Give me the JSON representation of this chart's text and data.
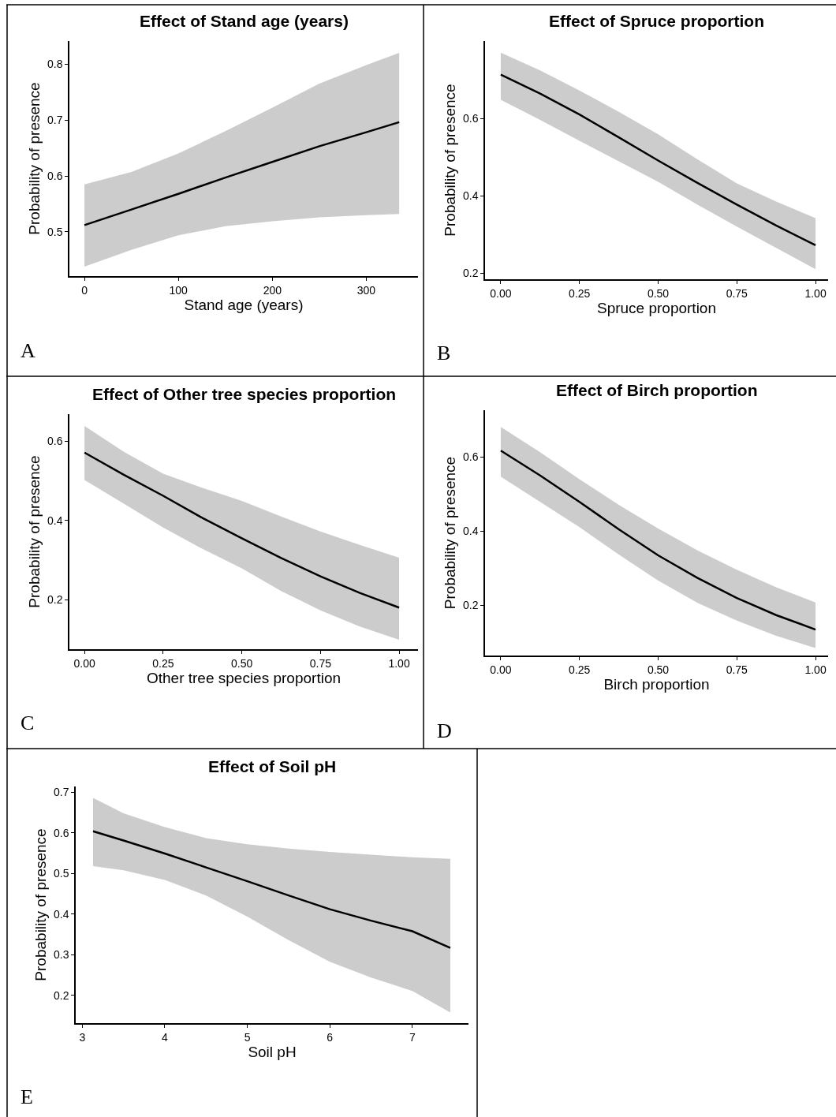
{
  "chart_data": [
    {
      "type": "line",
      "title": "Effect of Stand age (years)",
      "xlabel": "Stand age (years)",
      "ylabel": "Probability of presence",
      "annotations": [
        "A"
      ],
      "x": [
        0,
        50,
        100,
        150,
        200,
        250,
        300,
        335
      ],
      "series": [
        {
          "color": "#000000",
          "values": [
            0.512,
            0.54,
            0.568,
            0.597,
            0.625,
            0.653,
            0.678,
            0.696
          ],
          "lower": [
            0.438,
            0.468,
            0.494,
            0.51,
            0.519,
            0.526,
            0.53,
            0.532
          ],
          "upper": [
            0.585,
            0.607,
            0.64,
            0.68,
            0.722,
            0.765,
            0.798,
            0.82
          ]
        }
      ],
      "xlim": [
        -16,
        355
      ],
      "ylim": [
        0.421,
        0.841
      ],
      "xticks": [
        0,
        100,
        200,
        300
      ],
      "yticks": [
        0.5,
        0.6,
        0.7,
        0.8
      ]
    },
    {
      "type": "line",
      "title": "Effect of Spruce proportion",
      "xlabel": "Spruce proportion",
      "ylabel": "Probability of presence",
      "annotations": [
        "B"
      ],
      "x": [
        0,
        0.125,
        0.25,
        0.375,
        0.5,
        0.625,
        0.75,
        0.875,
        1
      ],
      "series": [
        {
          "color": "#000000",
          "values": [
            0.713,
            0.664,
            0.61,
            0.551,
            0.491,
            0.433,
            0.377,
            0.323,
            0.272
          ],
          "lower": [
            0.648,
            0.596,
            0.542,
            0.489,
            0.436,
            0.377,
            0.32,
            0.265,
            0.21
          ],
          "upper": [
            0.77,
            0.724,
            0.672,
            0.617,
            0.559,
            0.494,
            0.432,
            0.385,
            0.342
          ]
        }
      ],
      "xlim": [
        -0.05,
        1.04
      ],
      "ylim": [
        0.184,
        0.8
      ],
      "xticks": [
        {
          "value": 0,
          "label": "0.00"
        },
        {
          "value": 0.25,
          "label": "0.25"
        },
        {
          "value": 0.5,
          "label": "0.50"
        },
        {
          "value": 0.75,
          "label": "0.75"
        },
        {
          "value": 1,
          "label": "1.00"
        }
      ],
      "yticks": [
        0.2,
        0.4,
        0.6
      ]
    },
    {
      "type": "line",
      "title": "Effect of Other tree species proportion",
      "xlabel": "Other tree species proportion",
      "ylabel": "Probability of presence",
      "annotations": [
        "C"
      ],
      "x": [
        0,
        0.125,
        0.25,
        0.375,
        0.5,
        0.625,
        0.75,
        0.875,
        1
      ],
      "series": [
        {
          "color": "#000000",
          "values": [
            0.571,
            0.515,
            0.462,
            0.406,
            0.355,
            0.305,
            0.259,
            0.217,
            0.18
          ],
          "lower": [
            0.502,
            0.442,
            0.382,
            0.328,
            0.279,
            0.222,
            0.173,
            0.132,
            0.099
          ],
          "upper": [
            0.638,
            0.573,
            0.518,
            0.482,
            0.449,
            0.41,
            0.372,
            0.338,
            0.306
          ]
        }
      ],
      "xlim": [
        -0.048,
        1.06
      ],
      "ylim": [
        0.075,
        0.668
      ],
      "xticks": [
        {
          "value": 0,
          "label": "0.00"
        },
        {
          "value": 0.25,
          "label": "0.25"
        },
        {
          "value": 0.5,
          "label": "0.50"
        },
        {
          "value": 0.75,
          "label": "0.75"
        },
        {
          "value": 1,
          "label": "1.00"
        }
      ],
      "yticks": [
        0.2,
        0.4,
        0.6
      ]
    },
    {
      "type": "line",
      "title": "Effect of Birch proportion",
      "xlabel": "Birch proportion",
      "ylabel": "Probability of presence",
      "annotations": [
        "D"
      ],
      "x": [
        0,
        0.125,
        0.25,
        0.375,
        0.5,
        0.625,
        0.75,
        0.875,
        1
      ],
      "series": [
        {
          "color": "#000000",
          "values": [
            0.617,
            0.55,
            0.479,
            0.405,
            0.335,
            0.274,
            0.22,
            0.174,
            0.135
          ],
          "lower": [
            0.547,
            0.479,
            0.411,
            0.337,
            0.267,
            0.207,
            0.159,
            0.118,
            0.085
          ],
          "upper": [
            0.681,
            0.613,
            0.54,
            0.471,
            0.407,
            0.348,
            0.296,
            0.249,
            0.208
          ]
        }
      ],
      "xlim": [
        -0.05,
        1.04
      ],
      "ylim": [
        0.065,
        0.726
      ],
      "xticks": [
        {
          "value": 0,
          "label": "0.00"
        },
        {
          "value": 0.25,
          "label": "0.25"
        },
        {
          "value": 0.5,
          "label": "0.50"
        },
        {
          "value": 0.75,
          "label": "0.75"
        },
        {
          "value": 1,
          "label": "1.00"
        }
      ],
      "yticks": [
        0.2,
        0.4,
        0.6
      ]
    },
    {
      "type": "line",
      "title": "Effect of Soil pH",
      "xlabel": "Soil pH",
      "ylabel": "Probability of presence",
      "annotations": [
        "E"
      ],
      "x": [
        3.13,
        3.5,
        4,
        4.5,
        5,
        5.5,
        6,
        6.5,
        7,
        7.46
      ],
      "series": [
        {
          "color": "#000000",
          "values": [
            0.604,
            0.581,
            0.549,
            0.515,
            0.481,
            0.446,
            0.412,
            0.384,
            0.358,
            0.317
          ],
          "lower": [
            0.518,
            0.508,
            0.484,
            0.446,
            0.394,
            0.336,
            0.283,
            0.244,
            0.211,
            0.158
          ],
          "upper": [
            0.686,
            0.648,
            0.614,
            0.587,
            0.572,
            0.561,
            0.553,
            0.546,
            0.54,
            0.536
          ]
        }
      ],
      "xlim": [
        2.92,
        7.68
      ],
      "ylim": [
        0.132,
        0.714
      ],
      "xticks": [
        3,
        4,
        5,
        6,
        7
      ],
      "yticks": [
        0.2,
        0.3,
        0.4,
        0.5,
        0.6,
        0.7
      ]
    }
  ]
}
